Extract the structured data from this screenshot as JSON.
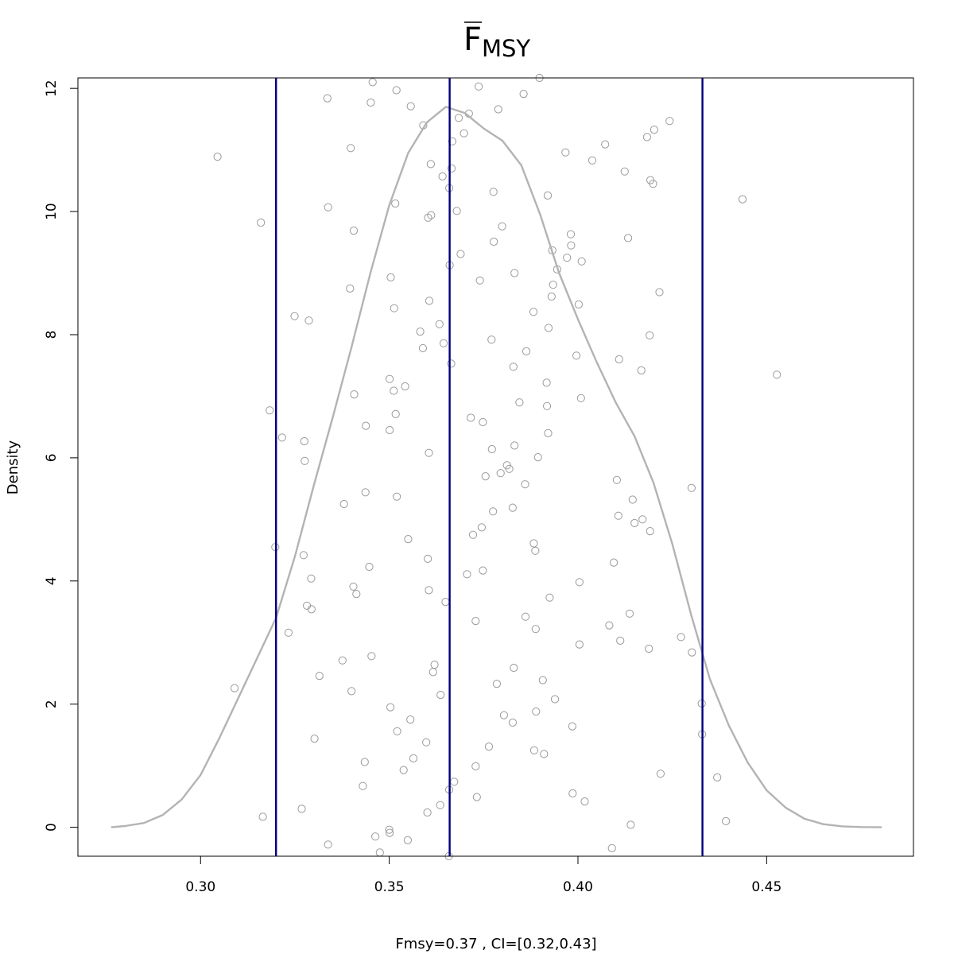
{
  "chart_data": {
    "type": "scatter",
    "title_main": "F",
    "title_sub": "MSY",
    "title_overline": true,
    "xlabel": "Fmsy=0.37 , CI=[0.32,0.43]",
    "ylabel": "Density",
    "xlim": [
      0.2675,
      0.4889
    ],
    "ylim": [
      -0.47,
      12.17
    ],
    "x_ticks": [
      0.3,
      0.35,
      0.4,
      0.45
    ],
    "x_tick_labels": [
      "0.30",
      "0.35",
      "0.40",
      "0.45"
    ],
    "y_ticks": [
      0,
      2,
      4,
      6,
      8,
      10,
      12
    ],
    "y_tick_labels": [
      "0",
      "2",
      "4",
      "6",
      "8",
      "10",
      "12"
    ],
    "vlines": [
      {
        "x": 0.32,
        "color": "#000080"
      },
      {
        "x": 0.366,
        "color": "#000080"
      },
      {
        "x": 0.433,
        "color": "#000080"
      }
    ],
    "density_color": "#b3b3b3",
    "point_color": "#9a9a9a",
    "density_curve": [
      [
        0.2763,
        0.0
      ],
      [
        0.28,
        0.02
      ],
      [
        0.285,
        0.07
      ],
      [
        0.29,
        0.2
      ],
      [
        0.295,
        0.45
      ],
      [
        0.3,
        0.85
      ],
      [
        0.305,
        1.45
      ],
      [
        0.31,
        2.1
      ],
      [
        0.315,
        2.75
      ],
      [
        0.32,
        3.4
      ],
      [
        0.325,
        4.4
      ],
      [
        0.33,
        5.55
      ],
      [
        0.335,
        6.65
      ],
      [
        0.34,
        7.8
      ],
      [
        0.345,
        9.0
      ],
      [
        0.35,
        10.1
      ],
      [
        0.355,
        10.95
      ],
      [
        0.36,
        11.45
      ],
      [
        0.365,
        11.7
      ],
      [
        0.37,
        11.6
      ],
      [
        0.375,
        11.35
      ],
      [
        0.38,
        11.15
      ],
      [
        0.385,
        10.75
      ],
      [
        0.39,
        9.95
      ],
      [
        0.395,
        9.0
      ],
      [
        0.4,
        8.25
      ],
      [
        0.405,
        7.55
      ],
      [
        0.41,
        6.9
      ],
      [
        0.415,
        6.35
      ],
      [
        0.42,
        5.6
      ],
      [
        0.425,
        4.6
      ],
      [
        0.43,
        3.45
      ],
      [
        0.435,
        2.4
      ],
      [
        0.44,
        1.65
      ],
      [
        0.445,
        1.05
      ],
      [
        0.45,
        0.6
      ],
      [
        0.455,
        0.32
      ],
      [
        0.46,
        0.14
      ],
      [
        0.465,
        0.05
      ],
      [
        0.47,
        0.015
      ],
      [
        0.475,
        0.004
      ],
      [
        0.4805,
        0.0
      ]
    ],
    "points": [
      [
        0.3045,
        10.89
      ],
      [
        0.316,
        9.82
      ],
      [
        0.3183,
        6.77
      ],
      [
        0.309,
        2.26
      ],
      [
        0.3165,
        0.17
      ],
      [
        0.3198,
        4.55
      ],
      [
        0.3216,
        6.33
      ],
      [
        0.3233,
        3.16
      ],
      [
        0.3249,
        8.3
      ],
      [
        0.3268,
        0.3
      ],
      [
        0.3273,
        4.42
      ],
      [
        0.3275,
        6.27
      ],
      [
        0.3276,
        5.95
      ],
      [
        0.3282,
        3.6
      ],
      [
        0.3287,
        8.23
      ],
      [
        0.3293,
        4.04
      ],
      [
        0.3294,
        3.54
      ],
      [
        0.3302,
        1.44
      ],
      [
        0.3315,
        2.46
      ],
      [
        0.3336,
        11.84
      ],
      [
        0.3338,
        10.07
      ],
      [
        0.3338,
        -0.28
      ],
      [
        0.3376,
        2.71
      ],
      [
        0.338,
        5.25
      ],
      [
        0.3396,
        8.75
      ],
      [
        0.3398,
        11.03
      ],
      [
        0.34,
        2.21
      ],
      [
        0.3405,
        3.91
      ],
      [
        0.3406,
        9.69
      ],
      [
        0.3407,
        7.03
      ],
      [
        0.3413,
        3.79
      ],
      [
        0.343,
        0.67
      ],
      [
        0.3435,
        1.06
      ],
      [
        0.3437,
        5.44
      ],
      [
        0.3438,
        6.52
      ],
      [
        0.3447,
        4.23
      ],
      [
        0.3451,
        11.77
      ],
      [
        0.3453,
        2.78
      ],
      [
        0.3456,
        12.1
      ],
      [
        0.3463,
        -0.15
      ],
      [
        0.3475,
        -0.41
      ],
      [
        0.35,
        -0.04
      ],
      [
        0.3501,
        -0.09
      ],
      [
        0.3501,
        6.45
      ],
      [
        0.3501,
        7.28
      ],
      [
        0.3503,
        1.95
      ],
      [
        0.3504,
        8.93
      ],
      [
        0.3512,
        7.09
      ],
      [
        0.3513,
        8.43
      ],
      [
        0.3516,
        10.13
      ],
      [
        0.3517,
        6.71
      ],
      [
        0.3519,
        11.97
      ],
      [
        0.352,
        5.37
      ],
      [
        0.3521,
        1.56
      ],
      [
        0.3538,
        0.93
      ],
      [
        0.3542,
        7.16
      ],
      [
        0.3549,
        -0.21
      ],
      [
        0.355,
        4.68
      ],
      [
        0.3556,
        1.75
      ],
      [
        0.3557,
        11.71
      ],
      [
        0.3564,
        1.12
      ],
      [
        0.3582,
        8.05
      ],
      [
        0.3589,
        7.78
      ],
      [
        0.359,
        11.4
      ],
      [
        0.3598,
        1.38
      ],
      [
        0.3601,
        0.24
      ],
      [
        0.3602,
        4.36
      ],
      [
        0.3603,
        9.9
      ],
      [
        0.3605,
        6.08
      ],
      [
        0.3605,
        3.85
      ],
      [
        0.3606,
        8.55
      ],
      [
        0.361,
        10.77
      ],
      [
        0.3611,
        9.94
      ],
      [
        0.3616,
        2.52
      ],
      [
        0.362,
        2.64
      ],
      [
        0.3633,
        8.17
      ],
      [
        0.3635,
        0.36
      ],
      [
        0.3636,
        2.15
      ],
      [
        0.3641,
        10.57
      ],
      [
        0.3644,
        7.86
      ],
      [
        0.3649,
        3.66
      ],
      [
        0.3658,
        -0.47
      ],
      [
        0.3659,
        0.61
      ],
      [
        0.3659,
        10.38
      ],
      [
        0.366,
        9.13
      ],
      [
        0.3664,
        7.53
      ],
      [
        0.3665,
        10.7
      ],
      [
        0.3667,
        11.14
      ],
      [
        0.3672,
        0.74
      ],
      [
        0.3679,
        10.01
      ],
      [
        0.3684,
        11.52
      ],
      [
        0.3689,
        9.31
      ],
      [
        0.3698,
        11.27
      ],
      [
        0.3706,
        4.11
      ],
      [
        0.3711,
        11.59
      ],
      [
        0.3716,
        6.65
      ],
      [
        0.3722,
        4.75
      ],
      [
        0.3729,
        0.99
      ],
      [
        0.3729,
        3.35
      ],
      [
        0.3732,
        0.49
      ],
      [
        0.3737,
        12.03
      ],
      [
        0.374,
        8.88
      ],
      [
        0.3745,
        4.87
      ],
      [
        0.3748,
        6.58
      ],
      [
        0.3748,
        4.17
      ],
      [
        0.3755,
        5.7
      ],
      [
        0.3764,
        1.31
      ],
      [
        0.3771,
        7.92
      ],
      [
        0.3772,
        6.14
      ],
      [
        0.3775,
        5.13
      ],
      [
        0.3776,
        10.32
      ],
      [
        0.3777,
        9.51
      ],
      [
        0.3785,
        2.33
      ],
      [
        0.3789,
        11.66
      ],
      [
        0.3795,
        5.75
      ],
      [
        0.3799,
        9.76
      ],
      [
        0.3804,
        1.82
      ],
      [
        0.3812,
        5.88
      ],
      [
        0.3818,
        5.82
      ],
      [
        0.3827,
        1.7
      ],
      [
        0.3827,
        5.19
      ],
      [
        0.3829,
        7.48
      ],
      [
        0.383,
        2.59
      ],
      [
        0.3832,
        9.0
      ],
      [
        0.3832,
        6.2
      ],
      [
        0.3845,
        6.9
      ],
      [
        0.3856,
        11.91
      ],
      [
        0.386,
        5.57
      ],
      [
        0.3861,
        3.42
      ],
      [
        0.3863,
        7.73
      ],
      [
        0.3882,
        8.37
      ],
      [
        0.3883,
        4.61
      ],
      [
        0.3884,
        1.25
      ],
      [
        0.3887,
        4.49
      ],
      [
        0.3888,
        3.22
      ],
      [
        0.3889,
        1.88
      ],
      [
        0.3894,
        6.01
      ],
      [
        0.3898,
        12.17
      ],
      [
        0.3907,
        2.39
      ],
      [
        0.391,
        1.19
      ],
      [
        0.3917,
        7.22
      ],
      [
        0.3918,
        6.84
      ],
      [
        0.392,
        10.26
      ],
      [
        0.3921,
        6.4
      ],
      [
        0.3922,
        8.11
      ],
      [
        0.3925,
        3.73
      ],
      [
        0.393,
        8.62
      ],
      [
        0.3932,
        9.37
      ],
      [
        0.3934,
        8.81
      ],
      [
        0.3939,
        2.08
      ],
      [
        0.3945,
        9.06
      ],
      [
        0.3967,
        10.96
      ],
      [
        0.3971,
        9.25
      ],
      [
        0.3981,
        9.63
      ],
      [
        0.3982,
        9.45
      ],
      [
        0.3985,
        1.64
      ],
      [
        0.3986,
        0.55
      ],
      [
        0.3996,
        7.66
      ],
      [
        0.4002,
        8.49
      ],
      [
        0.4004,
        3.98
      ],
      [
        0.4004,
        2.97
      ],
      [
        0.4008,
        6.97
      ],
      [
        0.401,
        9.19
      ],
      [
        0.4018,
        0.42
      ],
      [
        0.4038,
        10.83
      ],
      [
        0.4072,
        11.09
      ],
      [
        0.4083,
        3.28
      ],
      [
        0.409,
        -0.34
      ],
      [
        0.4095,
        4.3
      ],
      [
        0.4103,
        5.64
      ],
      [
        0.4107,
        5.06
      ],
      [
        0.4109,
        7.6
      ],
      [
        0.4112,
        3.03
      ],
      [
        0.4124,
        10.65
      ],
      [
        0.4133,
        9.57
      ],
      [
        0.4137,
        3.47
      ],
      [
        0.414,
        0.04
      ],
      [
        0.4145,
        5.32
      ],
      [
        0.415,
        4.94
      ],
      [
        0.4168,
        7.42
      ],
      [
        0.4171,
        5.0
      ],
      [
        0.4183,
        11.21
      ],
      [
        0.4188,
        2.9
      ],
      [
        0.419,
        7.99
      ],
      [
        0.4191,
        4.81
      ],
      [
        0.4192,
        10.51
      ],
      [
        0.4199,
        10.45
      ],
      [
        0.4202,
        11.33
      ],
      [
        0.4216,
        8.69
      ],
      [
        0.4219,
        0.87
      ],
      [
        0.4243,
        11.47
      ],
      [
        0.4273,
        3.09
      ],
      [
        0.4301,
        5.51
      ],
      [
        0.4302,
        2.84
      ],
      [
        0.4328,
        2.01
      ],
      [
        0.4329,
        1.51
      ],
      [
        0.4369,
        0.81
      ],
      [
        0.4392,
        0.1
      ],
      [
        0.4436,
        10.2
      ],
      [
        0.4527,
        7.35
      ]
    ]
  }
}
